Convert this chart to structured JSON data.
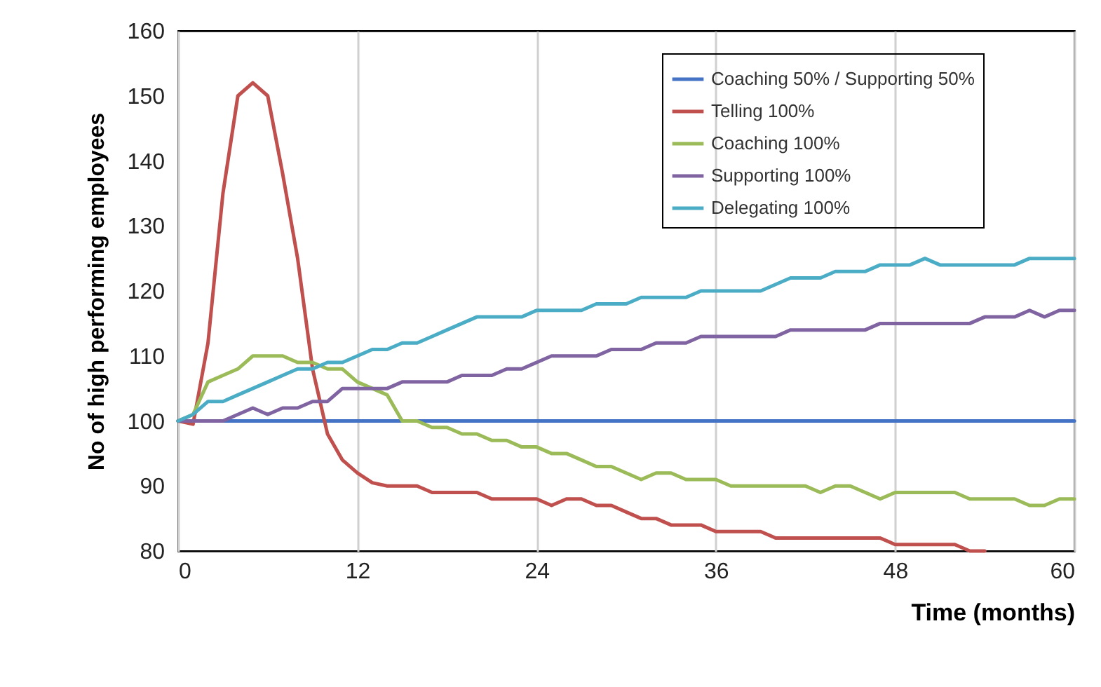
{
  "chart_data": {
    "type": "line",
    "xlabel": "Time (months)",
    "ylabel": "No of high performing employees",
    "x": [
      0,
      1,
      2,
      3,
      4,
      5,
      6,
      7,
      8,
      9,
      10,
      11,
      12,
      13,
      14,
      15,
      16,
      17,
      18,
      19,
      20,
      21,
      22,
      23,
      24,
      25,
      26,
      27,
      28,
      29,
      30,
      31,
      32,
      33,
      34,
      35,
      36,
      37,
      38,
      39,
      40,
      41,
      42,
      43,
      44,
      45,
      46,
      47,
      48,
      49,
      50,
      51,
      52,
      53,
      54,
      55,
      56,
      57,
      58,
      59,
      60
    ],
    "series": [
      {
        "name": "Coaching 50% / Supporting 50%",
        "color": "#4472c4",
        "values": [
          100,
          100,
          100,
          100,
          100,
          100,
          100,
          100,
          100,
          100,
          100,
          100,
          100,
          100,
          100,
          100,
          100,
          100,
          100,
          100,
          100,
          100,
          100,
          100,
          100,
          100,
          100,
          100,
          100,
          100,
          100,
          100,
          100,
          100,
          100,
          100,
          100,
          100,
          100,
          100,
          100,
          100,
          100,
          100,
          100,
          100,
          100,
          100,
          100,
          100,
          100,
          100,
          100,
          100,
          100,
          100,
          100,
          100,
          100,
          100,
          100
        ]
      },
      {
        "name": "Telling 100%",
        "color": "#c0504d",
        "values": [
          100,
          99.5,
          112,
          135,
          150,
          152,
          150,
          138,
          125,
          108,
          98,
          94,
          92,
          90.5,
          90,
          90,
          90,
          89,
          89,
          89,
          89,
          88,
          88,
          88,
          88,
          87,
          88,
          88,
          87,
          87,
          86,
          85,
          85,
          84,
          84,
          84,
          83,
          83,
          83,
          83,
          82,
          82,
          82,
          82,
          82,
          82,
          82,
          82,
          81,
          81,
          81,
          81,
          81,
          80,
          80,
          null,
          null,
          null,
          null,
          null,
          null
        ]
      },
      {
        "name": "Coaching 100%",
        "color": "#9bbb59",
        "values": [
          100,
          101,
          106,
          107,
          108,
          110,
          110,
          110,
          109,
          109,
          108,
          108,
          106,
          105,
          104,
          100,
          100,
          99,
          99,
          98,
          98,
          97,
          97,
          96,
          96,
          95,
          95,
          94,
          93,
          93,
          92,
          91,
          92,
          92,
          91,
          91,
          91,
          90,
          90,
          90,
          90,
          90,
          90,
          89,
          90,
          90,
          89,
          88,
          89,
          89,
          89,
          89,
          89,
          88,
          88,
          88,
          88,
          87,
          87,
          88,
          88
        ]
      },
      {
        "name": "Supporting 100%",
        "color": "#8064a2",
        "values": [
          100,
          100,
          100,
          100,
          101,
          102,
          101,
          102,
          102,
          103,
          103,
          105,
          105,
          105,
          105,
          106,
          106,
          106,
          106,
          107,
          107,
          107,
          108,
          108,
          109,
          110,
          110,
          110,
          110,
          111,
          111,
          111,
          112,
          112,
          112,
          113,
          113,
          113,
          113,
          113,
          113,
          114,
          114,
          114,
          114,
          114,
          114,
          115,
          115,
          115,
          115,
          115,
          115,
          115,
          116,
          116,
          116,
          117,
          116,
          117,
          117
        ]
      },
      {
        "name": "Delegating 100%",
        "color": "#4bacc6",
        "values": [
          100,
          101,
          103,
          103,
          104,
          105,
          106,
          107,
          108,
          108,
          109,
          109,
          110,
          111,
          111,
          112,
          112,
          113,
          114,
          115,
          116,
          116,
          116,
          116,
          117,
          117,
          117,
          117,
          118,
          118,
          118,
          119,
          119,
          119,
          119,
          120,
          120,
          120,
          120,
          120,
          121,
          122,
          122,
          122,
          123,
          123,
          123,
          124,
          124,
          124,
          125,
          124,
          124,
          124,
          124,
          124,
          124,
          125,
          125,
          125,
          125
        ]
      }
    ],
    "xlim": [
      0,
      60
    ],
    "xticks": [
      0,
      12,
      24,
      36,
      48,
      60
    ],
    "ylim": [
      80,
      160
    ],
    "yticks": [
      80,
      90,
      100,
      110,
      120,
      130,
      140,
      150,
      160
    ],
    "grid": "x",
    "legend": "top right",
    "marker": "none",
    "line_style": "solid"
  }
}
